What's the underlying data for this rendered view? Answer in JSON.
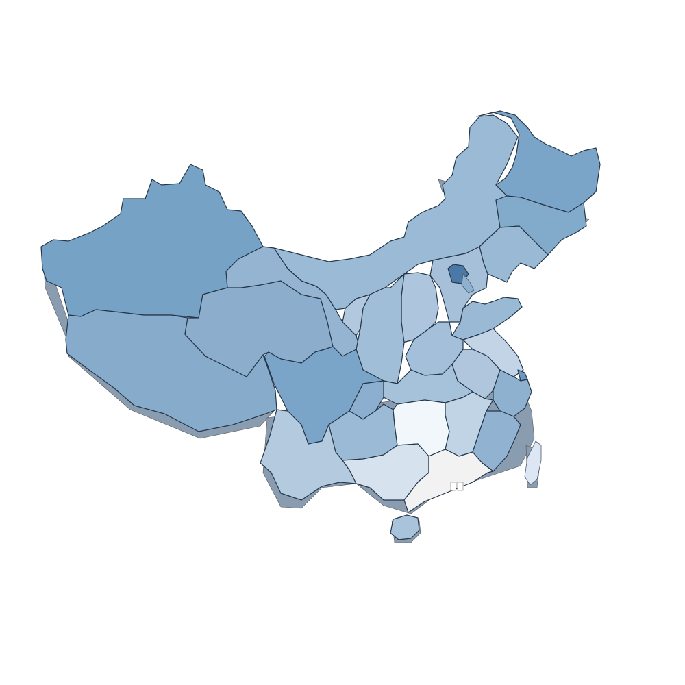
{
  "map": {
    "regions": [
      {
        "id": "xinjiang",
        "shade": "#76a2c6"
      },
      {
        "id": "tibet",
        "shade": "#87abcb"
      },
      {
        "id": "qinghai",
        "shade": "#8cadcc"
      },
      {
        "id": "gansu",
        "shade": "#94b4d1"
      },
      {
        "id": "inner-mongolia",
        "shade": "#9bbad5"
      },
      {
        "id": "heilongjiang",
        "shade": "#7aa5c8"
      },
      {
        "id": "jilin",
        "shade": "#82aacb"
      },
      {
        "id": "liaoning",
        "shade": "#9ab9d5"
      },
      {
        "id": "beijing",
        "shade": "#4a79a8"
      },
      {
        "id": "tianjin",
        "shade": "#8fb1d0"
      },
      {
        "id": "hebei",
        "shade": "#a6c0d9"
      },
      {
        "id": "shanxi",
        "shade": "#aec6dd"
      },
      {
        "id": "shandong",
        "shade": "#9ab9d5"
      },
      {
        "id": "ningxia",
        "shade": "#b1c8de"
      },
      {
        "id": "shaanxi",
        "shade": "#a1bed8"
      },
      {
        "id": "henan",
        "shade": "#a3bfd9"
      },
      {
        "id": "jiangsu",
        "shade": "#c2d4e6"
      },
      {
        "id": "shanghai",
        "shade": "#6d97be"
      },
      {
        "id": "anhui",
        "shade": "#b0c6dc"
      },
      {
        "id": "hubei",
        "shade": "#a6c1da"
      },
      {
        "id": "sichuan",
        "shade": "#7aa4c8"
      },
      {
        "id": "chongqing",
        "shade": "#8cafcf"
      },
      {
        "id": "zhejiang",
        "shade": "#8fb1d0"
      },
      {
        "id": "hunan",
        "shade": "#f2f7fc"
      },
      {
        "id": "jiangxi",
        "shade": "#c1d4e6"
      },
      {
        "id": "fujian",
        "shade": "#91b2d1"
      },
      {
        "id": "guizhou",
        "shade": "#9bbad5"
      },
      {
        "id": "yunnan",
        "shade": "#b3cadf"
      },
      {
        "id": "guangxi",
        "shade": "#d6e2ee"
      },
      {
        "id": "guangdong",
        "shade": "#f2f2f2"
      },
      {
        "id": "hainan",
        "shade": "#a9c3db"
      },
      {
        "id": "taiwan",
        "shade": "#dde6f4"
      }
    ]
  }
}
